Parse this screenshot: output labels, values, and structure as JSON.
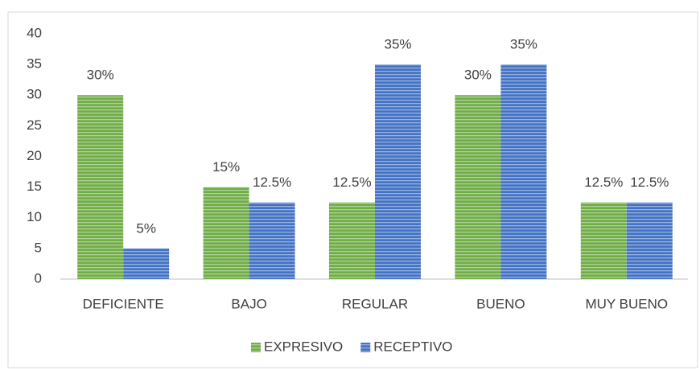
{
  "chart_data": {
    "type": "bar",
    "categories": [
      "DEFICIENTE",
      "BAJO",
      "REGULAR",
      "BUENO",
      "MUY BUENO"
    ],
    "series": [
      {
        "name": "EXPRESIVO",
        "color": "#70ad47",
        "values": [
          30,
          15,
          12.5,
          30,
          12.5
        ],
        "value_labels": [
          "30%",
          "15%",
          "12.5%",
          "30%",
          "12.5%"
        ]
      },
      {
        "name": "RECEPTIVO",
        "color": "#4472c4",
        "values": [
          5,
          12.5,
          35,
          35,
          12.5
        ],
        "value_labels": [
          "5%",
          "12.5%",
          "35%",
          "35%",
          "12.5%"
        ]
      }
    ],
    "ylim": [
      0,
      40
    ],
    "yticks": [
      0,
      5,
      10,
      15,
      20,
      25,
      30,
      35,
      40
    ],
    "legend": "bottom"
  }
}
